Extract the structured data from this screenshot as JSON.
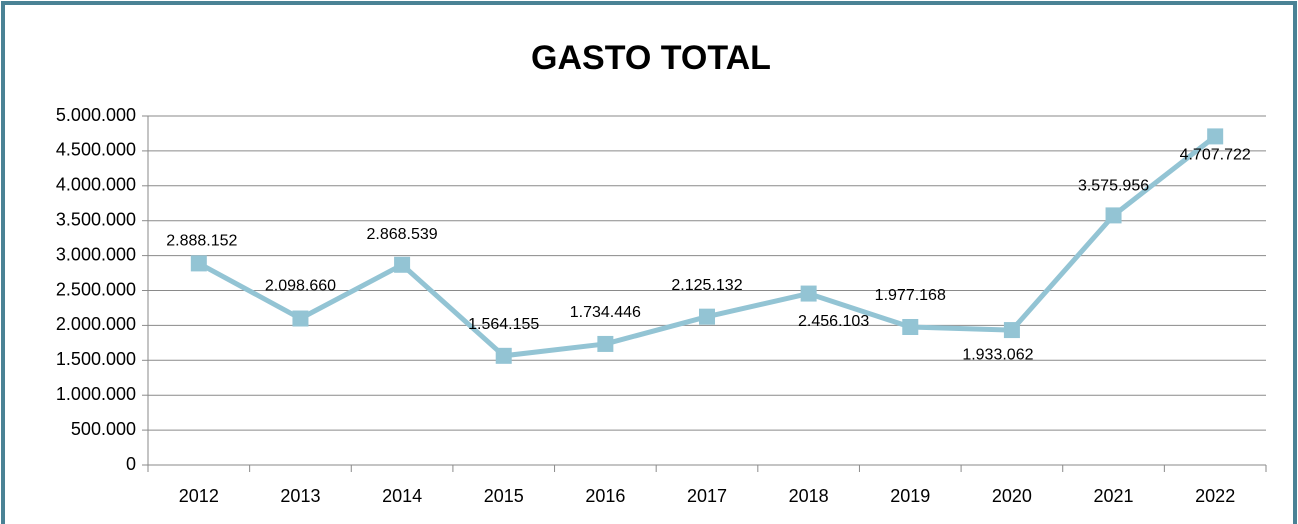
{
  "chart_data": {
    "type": "line",
    "title": "GASTO TOTAL",
    "categories": [
      "2012",
      "2013",
      "2014",
      "2015",
      "2016",
      "2017",
      "2018",
      "2019",
      "2020",
      "2021",
      "2022"
    ],
    "series": [
      {
        "name": "GASTO TOTAL",
        "color": "#93c4d4",
        "values": [
          2888152,
          2098660,
          2868539,
          1564155,
          1734446,
          2125132,
          2456103,
          1977168,
          1933062,
          3575956,
          4707722
        ],
        "value_labels": [
          "2.888.152",
          "2.098.660",
          "2.868.539",
          "1.564.155",
          "1.734.446",
          "2.125.132",
          "2.456.103",
          "1.977.168",
          "1.933.062",
          "3.575.956",
          "4.707.722"
        ]
      }
    ],
    "ylim": [
      0,
      5000000
    ],
    "yticks": [
      0,
      {
        "value": 500000,
        "label": "500.000"
      },
      {
        "value": 1000000,
        "label": "1.000.000"
      },
      {
        "value": 1500000,
        "label": "1.500.000"
      },
      {
        "value": 2000000,
        "label": "2.000.000"
      },
      {
        "value": 2500000,
        "label": "2.500.000"
      },
      {
        "value": 3000000,
        "label": "3.000.000"
      },
      {
        "value": 3500000,
        "label": "3.500.000"
      },
      {
        "value": 4000000,
        "label": "4.000.000"
      },
      {
        "value": 4500000,
        "label": "4.500.000"
      },
      {
        "value": 5000000,
        "label": "5.000.000"
      }
    ],
    "grid": true
  }
}
